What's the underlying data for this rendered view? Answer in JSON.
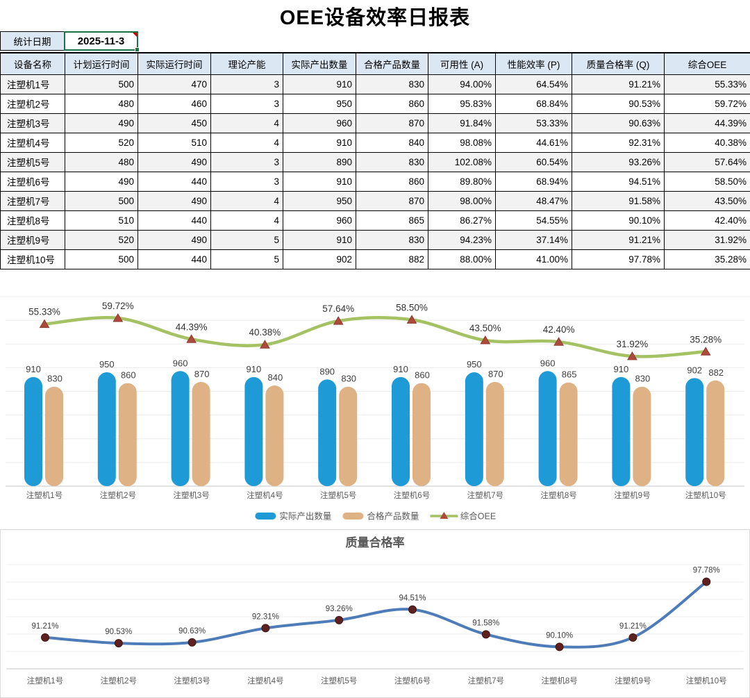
{
  "title": "OEE设备效率日报表",
  "date": {
    "label": "统计日期",
    "value": "2025-11-3"
  },
  "colors": {
    "header_bg": "#DBE7F3",
    "row_alt_bg": "#F2F2F2",
    "selection_green": "#1E7145",
    "comment_red": "#C00000",
    "grid_light": "#ECECEC",
    "axis_gray": "#C6C6C6",
    "label_gray": "#595959"
  },
  "table": {
    "headers": [
      "设备名称",
      "计划运行时间",
      "实际运行时间",
      "理论产能",
      "实际产出数量",
      "合格产品数量",
      "可用性 (A)",
      "性能效率 (P)",
      "质量合格率 (Q)",
      "综合OEE"
    ],
    "rows": [
      [
        "注塑机1号",
        "500",
        "470",
        "3",
        "910",
        "830",
        "94.00%",
        "64.54%",
        "91.21%",
        "55.33%"
      ],
      [
        "注塑机2号",
        "480",
        "460",
        "3",
        "950",
        "860",
        "95.83%",
        "68.84%",
        "90.53%",
        "59.72%"
      ],
      [
        "注塑机3号",
        "490",
        "450",
        "4",
        "960",
        "870",
        "91.84%",
        "53.33%",
        "90.63%",
        "44.39%"
      ],
      [
        "注塑机4号",
        "520",
        "510",
        "4",
        "910",
        "840",
        "98.08%",
        "44.61%",
        "92.31%",
        "40.38%"
      ],
      [
        "注塑机5号",
        "480",
        "490",
        "3",
        "890",
        "830",
        "102.08%",
        "60.54%",
        "93.26%",
        "57.64%"
      ],
      [
        "注塑机6号",
        "490",
        "440",
        "3",
        "910",
        "860",
        "89.80%",
        "68.94%",
        "94.51%",
        "58.50%"
      ],
      [
        "注塑机7号",
        "500",
        "490",
        "4",
        "950",
        "870",
        "98.00%",
        "48.47%",
        "91.58%",
        "43.50%"
      ],
      [
        "注塑机8号",
        "510",
        "440",
        "4",
        "960",
        "865",
        "86.27%",
        "54.55%",
        "90.10%",
        "42.40%"
      ],
      [
        "注塑机9号",
        "520",
        "490",
        "5",
        "910",
        "830",
        "94.23%",
        "37.14%",
        "91.21%",
        "31.92%"
      ],
      [
        "注塑机10号",
        "500",
        "440",
        "5",
        "902",
        "882",
        "88.00%",
        "41.00%",
        "97.78%",
        "35.28%"
      ]
    ]
  },
  "chart_data": [
    {
      "type": "combo-bar-line",
      "categories": [
        "注塑机1号",
        "注塑机2号",
        "注塑机3号",
        "注塑机4号",
        "注塑机5号",
        "注塑机6号",
        "注塑机7号",
        "注塑机8号",
        "注塑机9号",
        "注塑机10号"
      ],
      "series": [
        {
          "name": "实际产出数量",
          "type": "bar",
          "color": "#1E9BD7",
          "values": [
            910,
            950,
            960,
            910,
            890,
            910,
            950,
            960,
            910,
            902
          ]
        },
        {
          "name": "合格产品数量",
          "type": "bar",
          "color": "#DFB286",
          "values": [
            830,
            860,
            870,
            840,
            830,
            860,
            870,
            865,
            830,
            882
          ]
        },
        {
          "name": "综合OEE",
          "type": "line",
          "color": "#A4C263",
          "marker": "triangle",
          "marker_color": "#AE4A3C",
          "unit": "%",
          "values": [
            55.33,
            59.72,
            44.39,
            40.38,
            57.64,
            58.5,
            43.5,
            42.4,
            31.92,
            35.28
          ]
        }
      ],
      "legend_position": "bottom",
      "grid": true
    },
    {
      "type": "line",
      "title": "质量合格率",
      "categories": [
        "注塑机1号",
        "注塑机2号",
        "注塑机3号",
        "注塑机4号",
        "注塑机5号",
        "注塑机6号",
        "注塑机7号",
        "注塑机8号",
        "注塑机9号",
        "注塑机10号"
      ],
      "series": [
        {
          "name": "质量合格率",
          "color": "#4D7CB8",
          "marker": "circle",
          "marker_color": "#5F2120",
          "unit": "%",
          "values": [
            91.21,
            90.53,
            90.63,
            92.31,
            93.26,
            94.51,
            91.58,
            90.1,
            91.21,
            97.78
          ]
        }
      ],
      "ylim": [
        88,
        100
      ],
      "grid": true,
      "legend_position": "none"
    }
  ]
}
